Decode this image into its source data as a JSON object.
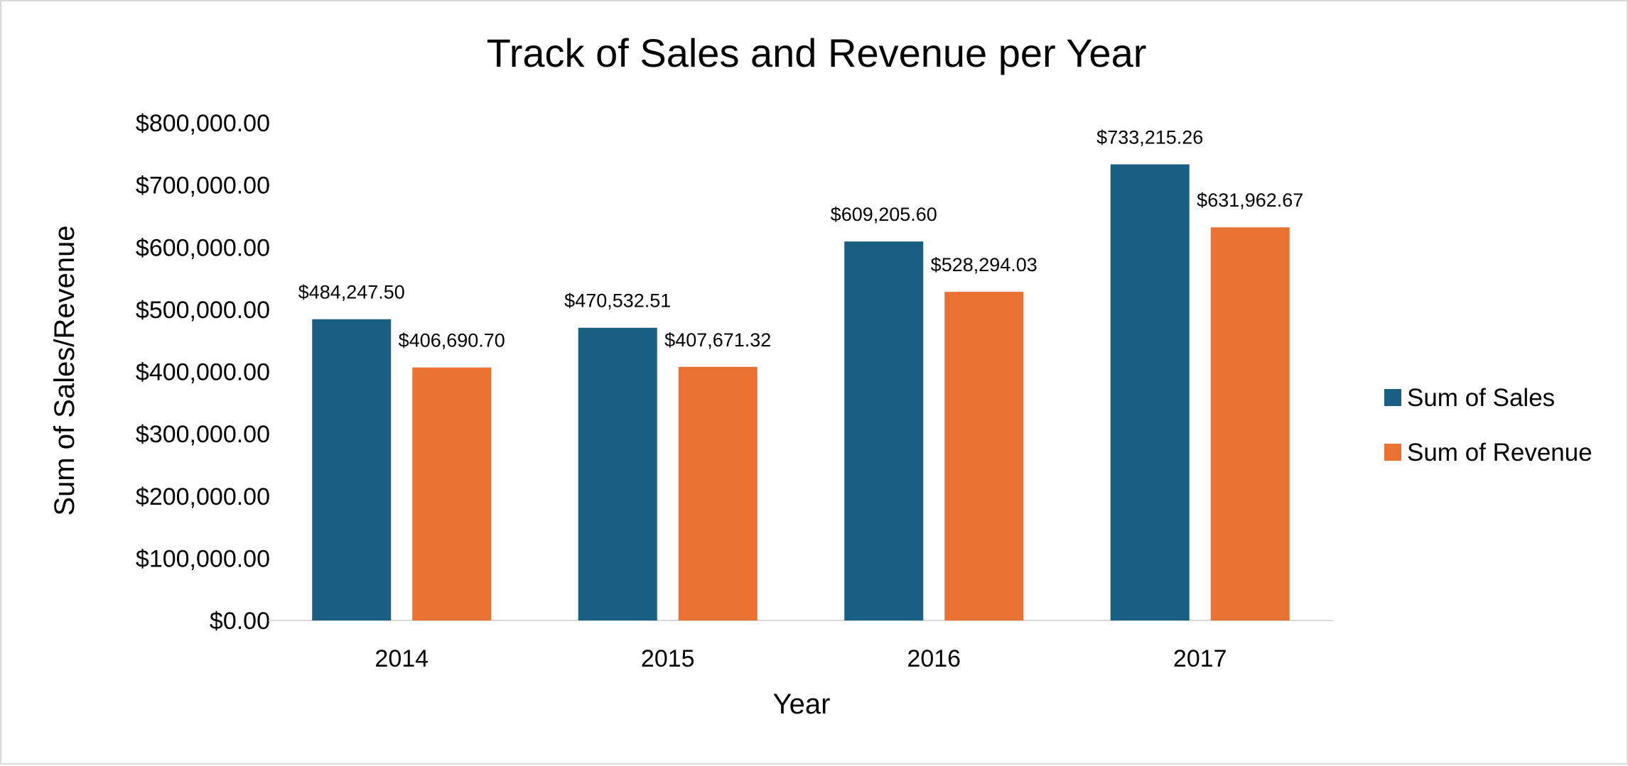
{
  "chart_data": {
    "type": "bar",
    "title": "Track of Sales and Revenue per Year",
    "xlabel": "Year",
    "ylabel": "Sum of Sales/Revenue",
    "categories": [
      "2014",
      "2015",
      "2016",
      "2017"
    ],
    "series": [
      {
        "name": "Sum of Sales",
        "color": "#185f82",
        "values": [
          484247.5,
          470532.51,
          609205.6,
          733215.26
        ],
        "labels": [
          "$484,247.50",
          "$470,532.51",
          "$609,205.60",
          "$733,215.26"
        ]
      },
      {
        "name": "Sum of Revenue",
        "color": "#e97132",
        "values": [
          406690.7,
          407671.32,
          528294.03,
          631962.67
        ],
        "labels": [
          "$406,690.70",
          "$407,671.32",
          "$528,294.03",
          "$631,962.67"
        ]
      }
    ],
    "ylim": [
      0,
      800000
    ],
    "yticks": [
      0,
      100000,
      200000,
      300000,
      400000,
      500000,
      600000,
      700000,
      800000
    ],
    "ytick_labels": [
      "$0.00",
      "$100,000.00",
      "$200,000.00",
      "$300,000.00",
      "$400,000.00",
      "$500,000.00",
      "$600,000.00",
      "$700,000.00",
      "$800,000.00"
    ],
    "grid": false,
    "legend_position": "right"
  }
}
